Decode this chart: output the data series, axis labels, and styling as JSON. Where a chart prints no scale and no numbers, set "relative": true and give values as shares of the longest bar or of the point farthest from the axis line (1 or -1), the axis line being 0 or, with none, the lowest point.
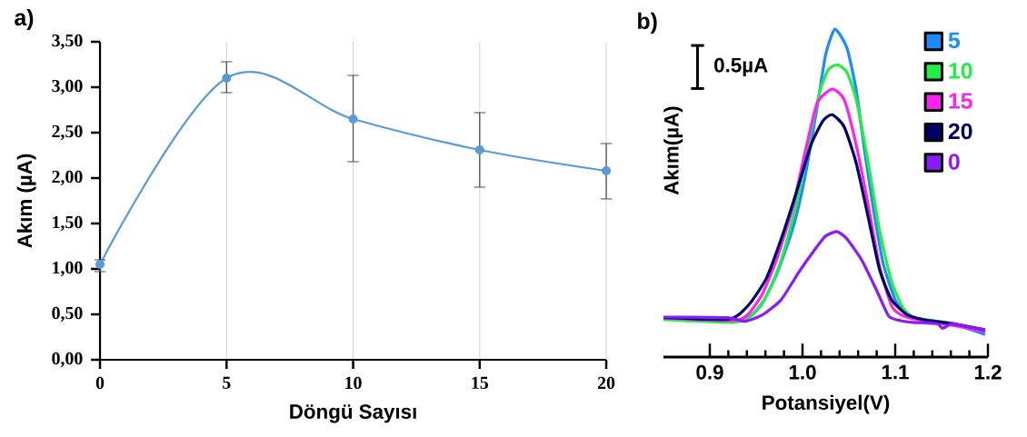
{
  "chart_data": [
    {
      "type": "line",
      "title": "a)",
      "xlabel": "Döngü Sayısı",
      "ylabel": "Akım (µA)",
      "color": "#5b9bd5",
      "marker": "circle",
      "grid": "x",
      "x": [
        0,
        5,
        10,
        15,
        20
      ],
      "values": [
        1.05,
        3.1,
        2.65,
        2.31,
        2.08
      ],
      "errors": [
        [
          0.97,
          1.1
        ],
        [
          2.94,
          3.28
        ],
        [
          2.18,
          3.13
        ],
        [
          1.9,
          2.72
        ],
        [
          1.77,
          2.38
        ]
      ],
      "xlim": [
        0,
        20
      ],
      "ylim": [
        0,
        3.5
      ],
      "xticks": [
        0,
        5,
        10,
        15,
        20
      ],
      "yticks": [
        {
          "value": 0,
          "label": "0,00"
        },
        {
          "value": 0.5,
          "label": "0,50"
        },
        {
          "value": 1,
          "label": "1,00"
        },
        {
          "value": 1.5,
          "label": "1,50"
        },
        {
          "value": 2,
          "label": "2,00"
        },
        {
          "value": 2.5,
          "label": "2,50"
        },
        {
          "value": 3,
          "label": "3,00"
        },
        {
          "value": 3.5,
          "label": "3,50"
        }
      ]
    },
    {
      "type": "line",
      "title": "b)",
      "xlabel": "Potansiyel(V)",
      "ylabel": "Akım(µA)",
      "relative": true,
      "legend": "top right",
      "annotations": [
        "0.5µA"
      ],
      "xlim": [
        0.85,
        1.2
      ],
      "xticks": [
        0.9,
        {
          "value": 1.0,
          "label": "1.0"
        },
        1.1,
        1.2
      ],
      "series": [
        {
          "name": "5",
          "color": "#1a8cff",
          "x": [
            0.925,
            0.944,
            0.957,
            0.973,
            0.99,
            1.003,
            1.016,
            1.025,
            1.035,
            1.048,
            1.058,
            1.067,
            1.077,
            1.087,
            1.1,
            1.113,
            1.129,
            1.161,
            1.197
          ],
          "values": [
            0.106,
            0.125,
            0.166,
            0.259,
            0.397,
            0.554,
            0.766,
            0.923,
            1,
            0.942,
            0.813,
            0.628,
            0.443,
            0.286,
            0.175,
            0.129,
            0.115,
            0.102,
            0.069
          ]
        },
        {
          "name": "10",
          "color": "#22ee44",
          "x": [
            0.85,
            0.925,
            0.944,
            0.961,
            0.977,
            0.993,
            1.006,
            1.019,
            1.028,
            1.038,
            1.048,
            1.058,
            1.071,
            1.083,
            1.096,
            1.109,
            1.122,
            1.161,
            1.197
          ],
          "values": [
            0.115,
            0.106,
            0.125,
            0.185,
            0.295,
            0.462,
            0.646,
            0.813,
            0.877,
            0.891,
            0.868,
            0.785,
            0.591,
            0.388,
            0.231,
            0.148,
            0.12,
            0.102,
            0.078
          ]
        },
        {
          "name": "15",
          "color": "#ff22ee",
          "x": [
            0.85,
            0.925,
            0.941,
            0.957,
            0.973,
            0.99,
            1.003,
            1.016,
            1.032,
            1.045,
            1.058,
            1.071,
            1.083,
            1.096,
            1.106,
            1.122,
            1.161,
            1.197
          ],
          "values": [
            0.12,
            0.111,
            0.129,
            0.194,
            0.305,
            0.462,
            0.628,
            0.776,
            0.817,
            0.785,
            0.646,
            0.462,
            0.277,
            0.157,
            0.129,
            0.115,
            0.097,
            0.078
          ]
        },
        {
          "name": "20",
          "color": "#000066",
          "x": [
            0.85,
            0.918,
            0.931,
            0.944,
            0.961,
            0.977,
            0.993,
            1.009,
            1.022,
            1.032,
            1.045,
            1.058,
            1.071,
            1.083,
            1.096,
            1.113,
            1.129,
            1.161,
            1.197
          ],
          "values": [
            0.12,
            0.115,
            0.129,
            0.166,
            0.24,
            0.36,
            0.499,
            0.646,
            0.72,
            0.739,
            0.702,
            0.591,
            0.425,
            0.268,
            0.175,
            0.129,
            0.115,
            0.102,
            0.083
          ]
        },
        {
          "name": "0",
          "color": "#8a1aff",
          "x": [
            0.85,
            0.918,
            0.938,
            0.957,
            0.977,
            0.996,
            1.012,
            1.025,
            1.037,
            1.048,
            1.064,
            1.08,
            1.093,
            1.106,
            1.119,
            1.145,
            1.151,
            1.161,
            1.171,
            1.197
          ],
          "values": [
            0.122,
            0.12,
            0.109,
            0.129,
            0.175,
            0.259,
            0.323,
            0.369,
            0.383,
            0.36,
            0.295,
            0.203,
            0.125,
            0.111,
            0.106,
            0.102,
            0.088,
            0.102,
            0.097,
            0.083
          ]
        }
      ]
    }
  ]
}
